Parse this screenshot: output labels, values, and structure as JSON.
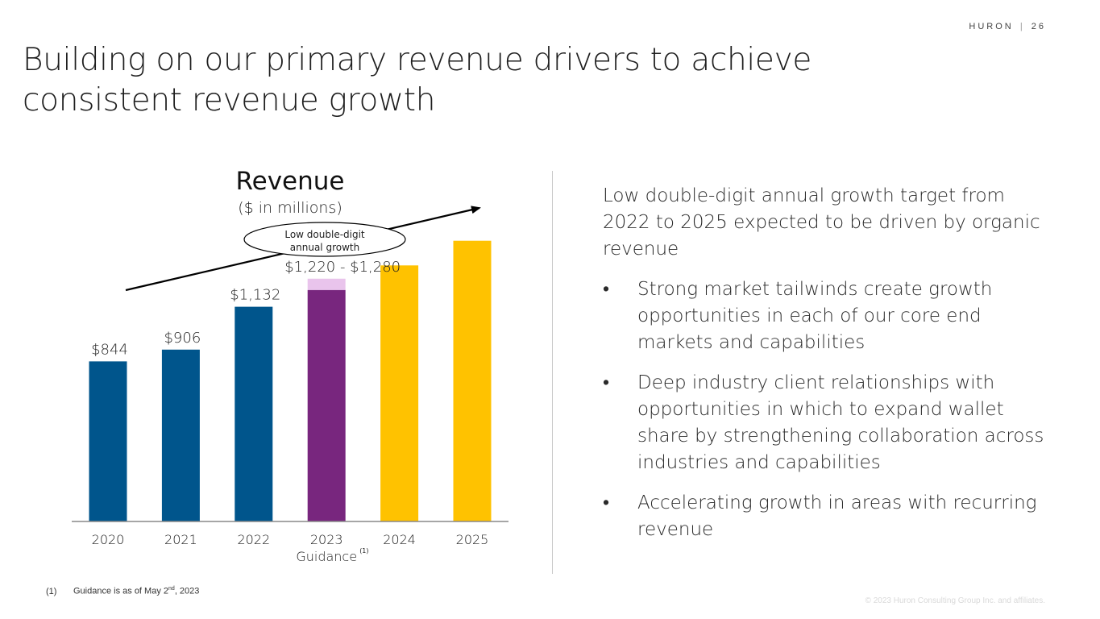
{
  "header": {
    "brand": "HURON",
    "separator": "|",
    "page_number": "26"
  },
  "page_title": {
    "line1": "Building on our primary revenue drivers to achieve",
    "line2": "consistent revenue growth"
  },
  "colors": {
    "blue": "#00558c",
    "purple": "#78267e",
    "lavender": "#e9c4ec",
    "gold": "#ffc200",
    "axis": "#888888"
  },
  "chart_data": {
    "type": "bar",
    "title": "Revenue",
    "subtitle": "($ in millions)",
    "categories": [
      "2020",
      "2021",
      "2022",
      "2023",
      "2024",
      "2025"
    ],
    "category_sublabel": {
      "index": 3,
      "text": "Guidance",
      "superscript": "(1)"
    },
    "values": [
      844,
      906,
      1132,
      1220,
      1350,
      1480
    ],
    "range_top": {
      "index": 3,
      "value": 1280
    },
    "data_labels": [
      "$844",
      "$906",
      "$1,132",
      "$1,220 - $1,280",
      "",
      ""
    ],
    "bar_colors": [
      "blue",
      "blue",
      "blue",
      "purple",
      "gold",
      "gold"
    ],
    "ylim": [
      0,
      1500
    ],
    "annotation": {
      "text_line1": "Low double-digit",
      "text_line2": "annual growth",
      "arrow": "trend arrow rising from 2020 toward 2025"
    },
    "xlabel": "",
    "ylabel": "",
    "grid": false
  },
  "right_panel": {
    "intro": "Low double-digit annual growth target from 2022 to 2025 expected to be driven by organic revenue",
    "bullet_symbol": "•",
    "bullets": [
      "Strong market tailwinds create growth opportunities in each of our core end markets and capabilities",
      "Deep industry client relationships with opportunities in which to expand wallet share by strengthening collaboration across industries and capabilities",
      "Accelerating growth in areas with recurring revenue"
    ]
  },
  "footnote": {
    "mark": "(1)",
    "text_before": "Guidance is as of May 2",
    "superscript": "nd",
    "text_after": ", 2023"
  },
  "copyright": "© 2023 Huron Consulting Group Inc. and affiliates."
}
